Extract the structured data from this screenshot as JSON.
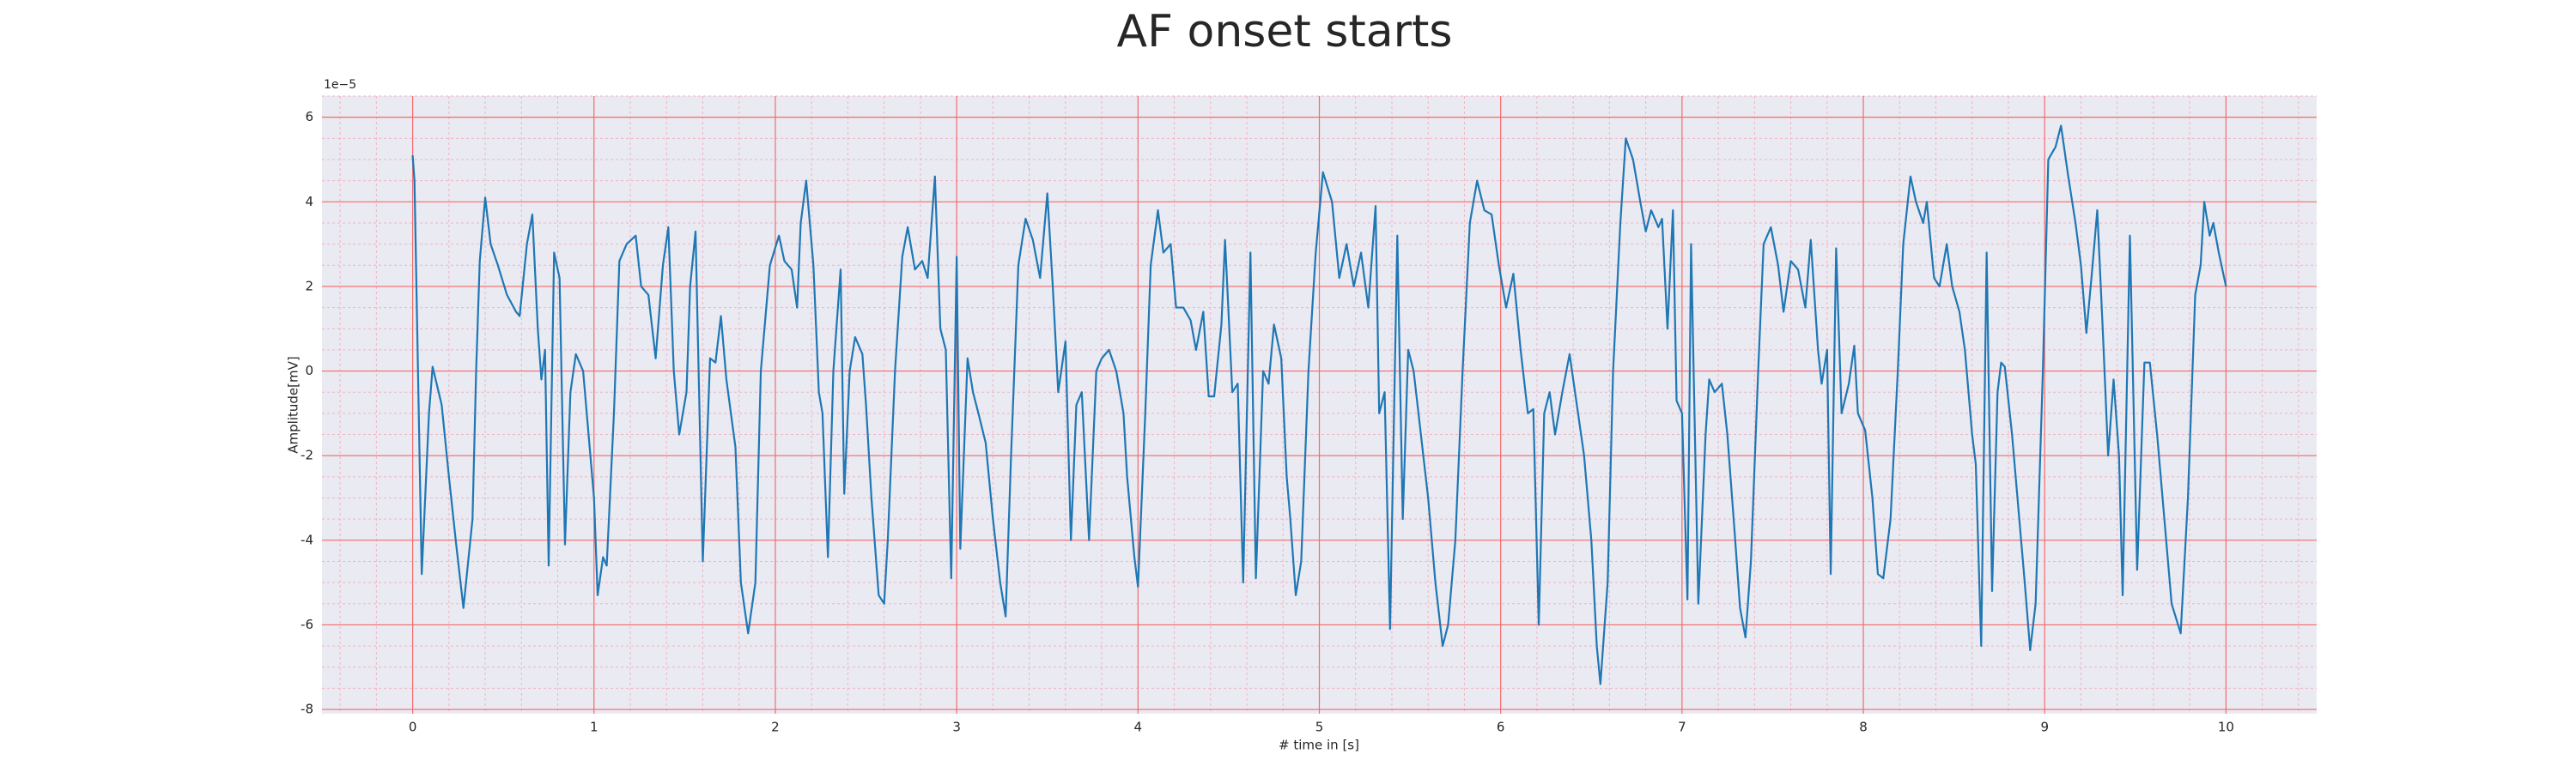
{
  "chart_data": {
    "type": "line",
    "title": "AF onset starts",
    "xlabel": "# time in [s]",
    "ylabel": "Amplitude[mV]",
    "y_offset_text": "1e−5",
    "xlim": [
      -0.5,
      10.5
    ],
    "ylim": [
      -8.1,
      6.5
    ],
    "xticks": [
      0,
      1,
      2,
      3,
      4,
      5,
      6,
      7,
      8,
      9,
      10
    ],
    "yticks": [
      -8,
      -6,
      -4,
      -2,
      0,
      2,
      4,
      6
    ],
    "grid": true,
    "minor_grid": true,
    "grid_color": "#f26b6b",
    "minor_grid_color": "#f2b3c0",
    "background": "#eaeaf2",
    "x": [
      0,
      0.01,
      0.05,
      0.09,
      0.11,
      0.16,
      0.2,
      0.24,
      0.28,
      0.33,
      0.35,
      0.37,
      0.4,
      0.43,
      0.47,
      0.52,
      0.57,
      0.59,
      0.63,
      0.66,
      0.69,
      0.71,
      0.73,
      0.75,
      0.78,
      0.81,
      0.84,
      0.87,
      0.9,
      0.94,
      0.97,
      1.0,
      1.02,
      1.05,
      1.07,
      1.11,
      1.14,
      1.18,
      1.23,
      1.26,
      1.3,
      1.34,
      1.38,
      1.41,
      1.44,
      1.47,
      1.51,
      1.53,
      1.56,
      1.6,
      1.64,
      1.67,
      1.7,
      1.73,
      1.78,
      1.81,
      1.85,
      1.89,
      1.92,
      1.97,
      2.02,
      2.05,
      2.09,
      2.12,
      2.14,
      2.17,
      2.21,
      2.24,
      2.26,
      2.29,
      2.32,
      2.36,
      2.38,
      2.41,
      2.44,
      2.48,
      2.5,
      2.53,
      2.57,
      2.6,
      2.62,
      2.66,
      2.7,
      2.73,
      2.77,
      2.81,
      2.84,
      2.88,
      2.91,
      2.94,
      2.97,
      3.0,
      3.02,
      3.06,
      3.09,
      3.12,
      3.16,
      3.2,
      3.24,
      3.27,
      3.3,
      3.34,
      3.38,
      3.42,
      3.46,
      3.5,
      3.53,
      3.56,
      3.6,
      3.63,
      3.66,
      3.69,
      3.73,
      3.77,
      3.8,
      3.84,
      3.88,
      3.92,
      3.94,
      3.98,
      4.0,
      4.04,
      4.07,
      4.11,
      4.14,
      4.18,
      4.21,
      4.25,
      4.29,
      4.32,
      4.36,
      4.39,
      4.42,
      4.46,
      4.48,
      4.52,
      4.55,
      4.58,
      4.62,
      4.65,
      4.69,
      4.72,
      4.75,
      4.79,
      4.82,
      4.84,
      4.87,
      4.9,
      4.94,
      4.98,
      5.02,
      5.07,
      5.11,
      5.15,
      5.19,
      5.23,
      5.27,
      5.31,
      5.33,
      5.36,
      5.39,
      5.43,
      5.46,
      5.49,
      5.52,
      5.56,
      5.6,
      5.64,
      5.68,
      5.71,
      5.75,
      5.79,
      5.83,
      5.87,
      5.91,
      5.95,
      5.99,
      6.03,
      6.07,
      6.11,
      6.15,
      6.18,
      6.21,
      6.24,
      6.27,
      6.3,
      6.34,
      6.38,
      6.42,
      6.46,
      6.5,
      6.53,
      6.55,
      6.59,
      6.62,
      6.66,
      6.69,
      6.73,
      6.77,
      6.8,
      6.83,
      6.87,
      6.89,
      6.92,
      6.95,
      6.97,
      7.0,
      7.03,
      7.05,
      7.09,
      7.13,
      7.15,
      7.18,
      7.22,
      7.25,
      7.29,
      7.32,
      7.35,
      7.38,
      7.42,
      7.45,
      7.49,
      7.53,
      7.56,
      7.6,
      7.64,
      7.68,
      7.71,
      7.75,
      7.77,
      7.8,
      7.82,
      7.85,
      7.88,
      7.92,
      7.95,
      7.97,
      8.01,
      8.05,
      8.08,
      8.11,
      8.15,
      8.19,
      8.22,
      8.26,
      8.29,
      8.33,
      8.35,
      8.39,
      8.42,
      8.46,
      8.49,
      8.53,
      8.56,
      8.6,
      8.62,
      8.65,
      8.68,
      8.71,
      8.74,
      8.76,
      8.78,
      8.82,
      8.85,
      8.89,
      8.92,
      8.95,
      8.99,
      9.02,
      9.06,
      9.09,
      9.13,
      9.17,
      9.2,
      9.23,
      9.26,
      9.29,
      9.32,
      9.35,
      9.38,
      9.41,
      9.43,
      9.47,
      9.51,
      9.55,
      9.58,
      9.62,
      9.66,
      9.7,
      9.75,
      9.79,
      9.83,
      9.86,
      9.88,
      9.91,
      9.93,
      9.96,
      10.0
    ],
    "series": [
      {
        "color": "#1f77b4",
        "values": [
          5.1,
          4.5,
          -4.8,
          -1,
          0.1,
          -0.8,
          -2.5,
          -4.1,
          -5.6,
          -3.5,
          0,
          2.6,
          4.1,
          3.0,
          2.5,
          1.8,
          1.4,
          1.3,
          3.0,
          3.7,
          1.0,
          -0.2,
          0.5,
          -4.6,
          2.8,
          2.2,
          -4.1,
          -0.5,
          0.4,
          0,
          -1.5,
          -3.0,
          -5.3,
          -4.4,
          -4.6,
          -1.0,
          2.6,
          3.0,
          3.2,
          2.0,
          1.8,
          0.3,
          2.5,
          3.4,
          0,
          -1.5,
          -0.5,
          2.0,
          3.3,
          -4.5,
          0.3,
          0.2,
          1.3,
          -0.2,
          -1.8,
          -5.0,
          -6.2,
          -5.0,
          0,
          2.5,
          3.2,
          2.6,
          2.4,
          1.5,
          3.5,
          4.5,
          2.5,
          -0.5,
          -1.0,
          -4.4,
          0,
          2.4,
          -2.9,
          0,
          0.8,
          0.4,
          -0.8,
          -3,
          -5.3,
          -5.5,
          -4.0,
          0,
          2.7,
          3.4,
          2.4,
          2.6,
          2.2,
          4.6,
          1.0,
          0.5,
          -4.9,
          2.7,
          -4.2,
          0.3,
          -0.5,
          -1.0,
          -1.7,
          -3.5,
          -5.0,
          -5.8,
          -2.0,
          2.5,
          3.6,
          3.1,
          2.2,
          4.2,
          2.0,
          -0.5,
          0.7,
          -4.0,
          -0.8,
          -0.5,
          -4.0,
          0,
          0.3,
          0.5,
          0,
          -1,
          -2.5,
          -4.4,
          -5.1,
          -1,
          2.5,
          3.8,
          2.8,
          3.0,
          1.5,
          1.5,
          1.2,
          0.5,
          1.4,
          -0.6,
          -0.6,
          1.1,
          3.1,
          -0.5,
          -0.3,
          -5.0,
          2.8,
          -4.9,
          0,
          -0.3,
          1.1,
          0.3,
          -2.5,
          -3.5,
          -5.3,
          -4.5,
          0,
          2.8,
          4.7,
          4.0,
          2.2,
          3.0,
          2.0,
          2.8,
          1.5,
          3.9,
          -1.0,
          -0.5,
          -6.1,
          3.2,
          -3.5,
          0.5,
          0,
          -1.5,
          -3.0,
          -5.0,
          -6.5,
          -6.0,
          -4.0,
          0,
          3.5,
          4.5,
          3.8,
          3.7,
          2.5,
          1.5,
          2.3,
          0.5,
          -1.0,
          -0.9,
          -6.0,
          -1.0,
          -0.5,
          -1.5,
          -0.5,
          0.4,
          -0.8,
          -2.0,
          -4.0,
          -6.5,
          -7.4,
          -5.0,
          0,
          3.5,
          5.5,
          5.0,
          4.0,
          3.3,
          3.8,
          3.4,
          3.6,
          1.0,
          3.8,
          -0.7,
          -1.0,
          -5.4,
          3.0,
          -5.5,
          -1.5,
          -0.2,
          -0.5,
          -0.3,
          -1.5,
          -3.8,
          -5.6,
          -6.3,
          -4.5,
          0,
          3.0,
          3.4,
          2.5,
          1.4,
          2.6,
          2.4,
          1.5,
          3.1,
          0.5,
          -0.3,
          0.5,
          -4.8,
          2.9,
          -1.0,
          -0.3,
          0.6,
          -1.0,
          -1.4,
          -3.0,
          -4.8,
          -4.9,
          -3.5,
          0,
          3.0,
          4.6,
          4.0,
          3.5,
          4.0,
          2.2,
          2.0,
          3.0,
          2.0,
          1.4,
          0.5,
          -1.5,
          -2.2,
          -6.5,
          2.8,
          -5.2,
          -0.5,
          0.2,
          0.1,
          -1.5,
          -3.0,
          -5.0,
          -6.6,
          -5.5,
          0,
          5.0,
          5.3,
          5.8,
          4.6,
          3.5,
          2.5,
          0.9,
          2.3,
          3.8,
          1.0,
          -2.0,
          -0.2,
          -2.0,
          -5.3,
          3.2,
          -4.7,
          0.2,
          0.2,
          -1.5,
          -3.5,
          -5.5,
          -6.2,
          -3.0,
          1.8,
          2.5,
          4.0,
          3.2,
          3.5,
          2.8,
          2.0
        ]
      }
    ]
  }
}
